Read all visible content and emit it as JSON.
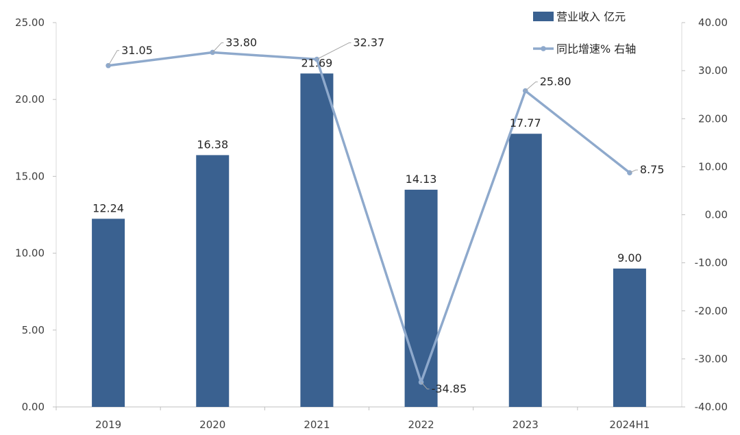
{
  "chart_data": {
    "type": "bar",
    "categories": [
      "2019",
      "2020",
      "2021",
      "2022",
      "2023",
      "2024H1"
    ],
    "series": [
      {
        "name": "营业收入 亿元",
        "type": "bar",
        "axis": "left",
        "color": "#3a6190",
        "values": [
          12.24,
          16.38,
          21.69,
          14.13,
          17.77,
          9.0
        ],
        "labels": [
          "12.24",
          "16.38",
          "21.69",
          "14.13",
          "17.77",
          "9.00"
        ]
      },
      {
        "name": "同比增速% 右轴",
        "type": "line",
        "axis": "right",
        "color": "#8ea9cc",
        "values": [
          31.05,
          33.8,
          32.37,
          -34.85,
          25.8,
          8.75
        ],
        "labels": [
          "31.05",
          "33.80",
          "32.37",
          "-34.85",
          "25.80",
          "8.75"
        ]
      }
    ],
    "left_axis": {
      "ylim": [
        0,
        25
      ],
      "ticks": [
        "0.00",
        "5.00",
        "10.00",
        "15.00",
        "20.00",
        "25.00"
      ]
    },
    "right_axis": {
      "ylim": [
        -40,
        40
      ],
      "ticks": [
        "-40.00",
        "-30.00",
        "-20.00",
        "-10.00",
        "0.00",
        "10.00",
        "20.00",
        "30.00",
        "40.00"
      ]
    },
    "legend_position": "top-right",
    "grid": false
  }
}
